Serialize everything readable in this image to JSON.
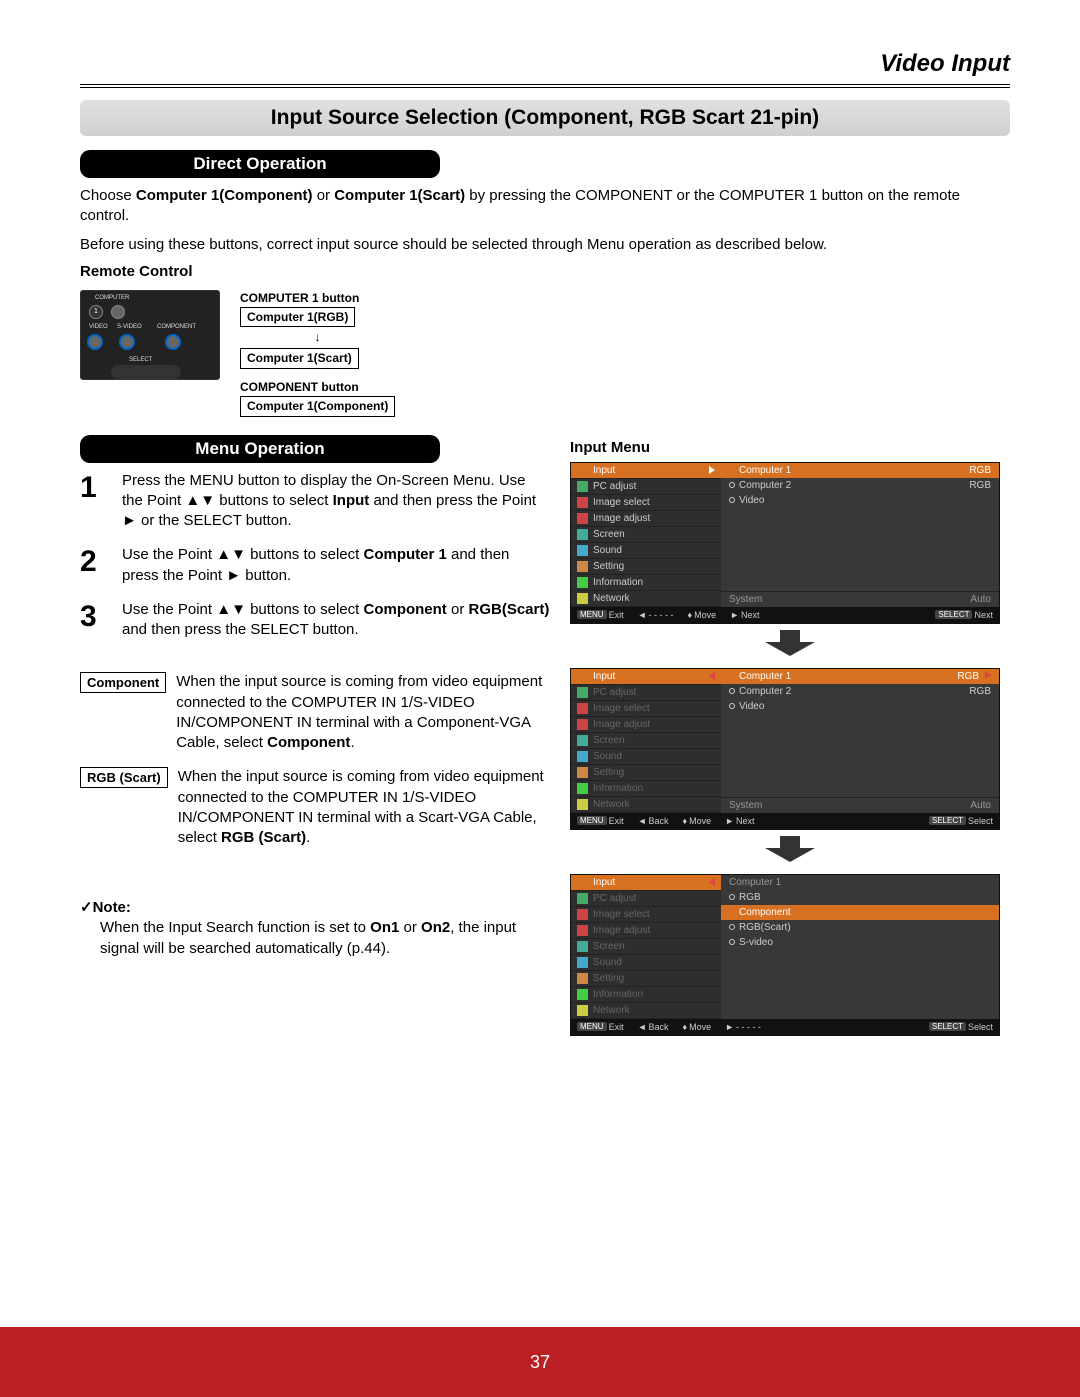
{
  "page_number": "37",
  "section_title": "Video Input",
  "main_header": "Input Source Selection (Component, RGB Scart 21-pin)",
  "direct_operation_header": "Direct Operation",
  "direct_op_text_1a": "Choose ",
  "direct_op_text_1b": "Computer 1(Component)",
  "direct_op_text_1c": " or ",
  "direct_op_text_1d": "Computer 1(Scart)",
  "direct_op_text_1e": " by pressing the COMPONENT or the COMPUTER 1 button on the remote control.",
  "direct_op_text_2": "Before using these buttons, correct input source should be selected through Menu operation as described below.",
  "remote_control_title": "Remote Control",
  "remote_labels": {
    "computer": "COMPUTER",
    "video": "VIDEO",
    "svideo": "S-VIDEO",
    "component": "COMPONENT",
    "select": "SELECT"
  },
  "rc_label_comp1_btn": "COMPUTER 1 button",
  "rc_label_comp1_rgb": "Computer 1(RGB)",
  "rc_label_comp1_scart": "Computer 1(Scart)",
  "rc_label_component_btn": "COMPONENT button",
  "rc_label_comp1_component": "Computer 1(Component)",
  "menu_operation_header": "Menu Operation",
  "input_menu_title": "Input Menu",
  "steps": {
    "1": {
      "num": "1",
      "a": "Press the MENU button to display the On-Screen Menu. Use the Point ▲▼ buttons to select ",
      "b": "Input",
      "c": " and then press the Point ► or the SELECT button."
    },
    "2": {
      "num": "2",
      "a": "Use the Point ▲▼ buttons to select ",
      "b": "Computer 1",
      "c": " and then press the Point ► button."
    },
    "3": {
      "num": "3",
      "a": "Use the Point ▲▼ buttons to select ",
      "b": "Component",
      "c": " or ",
      "d": "RGB(Scart)",
      "e": " and then press the SELECT button."
    }
  },
  "defs": {
    "component": {
      "label": "Component",
      "a": "When the input source is coming from video equipment connected to the COMPUTER IN 1/S-VIDEO IN/COMPONENT IN terminal with a Component-VGA Cable, select ",
      "b": "Component",
      "c": "."
    },
    "rgbscart": {
      "label": "RGB (Scart)",
      "a": "When the input source is coming from video equipment connected to the COMPUTER IN 1/S-VIDEO IN/COMPONENT IN terminal with a Scart-VGA Cable, select ",
      "b": "RGB (Scart)",
      "c": "."
    }
  },
  "note_label": "✓Note:",
  "note_a": "When the Input Search function is set to ",
  "note_b": "On1",
  "note_c": " or ",
  "note_d": "On2",
  "note_e": ", the input signal will be searched automatically (p.44).",
  "menus": {
    "colors": {
      "panel_bg": "#2e2e2e",
      "right_bg": "#383838",
      "highlight": "#d87021",
      "text": "#cccccc",
      "dim_text": "#666666",
      "footer_bg": "#111111"
    },
    "common_left": [
      {
        "icon": "input",
        "label": "Input"
      },
      {
        "icon": "pc",
        "label": "PC adjust"
      },
      {
        "icon": "imsel",
        "label": "Image select"
      },
      {
        "icon": "imadj",
        "label": "Image adjust"
      },
      {
        "icon": "screen",
        "label": "Screen"
      },
      {
        "icon": "sound",
        "label": "Sound"
      },
      {
        "icon": "set",
        "label": "Setting"
      },
      {
        "icon": "info",
        "label": "Information"
      },
      {
        "icon": "net",
        "label": "Network"
      }
    ],
    "m1_right": [
      {
        "label": "Computer 1",
        "value": "RGB",
        "sel": true
      },
      {
        "label": "Computer 2",
        "value": "RGB"
      },
      {
        "label": "Video",
        "value": ""
      }
    ],
    "m1_sys": {
      "label": "System",
      "value": "Auto"
    },
    "m1_footer": {
      "exit": "Exit",
      "l1": "- - - - -",
      "move": "Move",
      "next": "Next",
      "select": "Next",
      "menu_btn": "MENU",
      "select_btn": "SELECT"
    },
    "m2_right": [
      {
        "label": "Computer 1",
        "value": "RGB",
        "sel": true
      },
      {
        "label": "Computer 2",
        "value": "RGB"
      },
      {
        "label": "Video",
        "value": ""
      }
    ],
    "m2_sys": {
      "label": "System",
      "value": "Auto"
    },
    "m2_footer": {
      "exit": "Exit",
      "back": "Back",
      "move": "Move",
      "next": "Next",
      "select": "Select",
      "menu_btn": "MENU",
      "select_btn": "SELECT"
    },
    "m3_header": "Computer 1",
    "m3_right": [
      {
        "label": "RGB"
      },
      {
        "label": "Component",
        "sel": true
      },
      {
        "label": "RGB(Scart)"
      },
      {
        "label": "S-video"
      }
    ],
    "m3_footer": {
      "exit": "Exit",
      "back": "Back",
      "move": "Move",
      "l2": "- - - - -",
      "select": "Select",
      "menu_btn": "MENU",
      "select_btn": "SELECT"
    }
  },
  "accent_color": "#bb1f24"
}
